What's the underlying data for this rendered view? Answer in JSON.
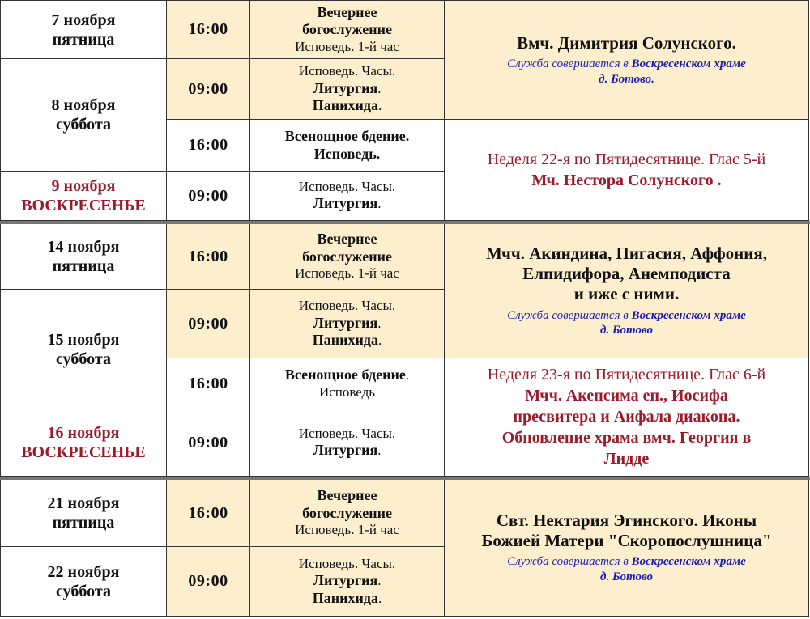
{
  "colors": {
    "highlight_bg": "#fdefce",
    "red_text": "#9b1b2b",
    "blue_note": "#2323b8",
    "border": "#333333"
  },
  "dates": [
    {
      "day": "7 ноября",
      "weekday": "пятница",
      "sunday": false
    },
    {
      "day": "8 ноября",
      "weekday": "суббота",
      "sunday": false
    },
    {
      "day": "9 ноября",
      "weekday": "ВОСКРЕСЕНЬЕ",
      "sunday": true
    },
    {
      "day": "14 ноября",
      "weekday": "пятница",
      "sunday": false
    },
    {
      "day": "15 ноября",
      "weekday": "суббота",
      "sunday": false
    },
    {
      "day": "16 ноября",
      "weekday": "ВОСКРЕСЕНЬЕ",
      "sunday": true
    },
    {
      "day": "21 ноября",
      "weekday": "пятница",
      "sunday": false
    },
    {
      "day": "22 ноября",
      "weekday": "суббота",
      "sunday": false
    }
  ],
  "services": [
    {
      "time": "16:00",
      "lines": [
        [
          {
            "t": "Вечернее",
            "b": true
          }
        ],
        [
          {
            "t": "богослужение",
            "b": true
          }
        ],
        [
          {
            "t": "Исповедь. 1-й час"
          }
        ]
      ]
    },
    {
      "time": "09:00",
      "lines": [
        [
          {
            "t": "Исповедь. Часы."
          }
        ],
        [
          {
            "t": "Литургия",
            "b": true
          },
          {
            "t": "."
          }
        ],
        [
          {
            "t": "Панихида",
            "b": true
          },
          {
            "t": "."
          }
        ]
      ]
    },
    {
      "time": "16:00",
      "lines": [
        [
          {
            "t": "Всенощное бдение.",
            "b": true
          }
        ],
        [
          {
            "t": "Исповедь.",
            "b": true
          }
        ]
      ]
    },
    {
      "time": "09:00",
      "lines": [
        [
          {
            "t": "Исповедь. Часы."
          }
        ],
        [
          {
            "t": "Литургия",
            "b": true
          },
          {
            "t": "."
          }
        ]
      ]
    },
    {
      "time": "16:00",
      "lines": [
        [
          {
            "t": "Вечернее",
            "b": true
          }
        ],
        [
          {
            "t": "богослужение",
            "b": true
          }
        ],
        [
          {
            "t": "Исповедь. 1-й час"
          }
        ]
      ]
    },
    {
      "time": "09:00",
      "lines": [
        [
          {
            "t": "Исповедь. Часы."
          }
        ],
        [
          {
            "t": "Литургия",
            "b": true
          },
          {
            "t": "."
          }
        ],
        [
          {
            "t": "Панихида",
            "b": true
          },
          {
            "t": "."
          }
        ]
      ]
    },
    {
      "time": "16:00",
      "lines": [
        [
          {
            "t": "Всенощное бдение",
            "b": true
          },
          {
            "t": "."
          }
        ],
        [
          {
            "t": "Исповедь"
          }
        ]
      ]
    },
    {
      "time": "09:00",
      "lines": [
        [
          {
            "t": "Исповедь. Часы."
          }
        ],
        [
          {
            "t": "Литургия",
            "b": true
          },
          {
            "t": "."
          }
        ]
      ]
    },
    {
      "time": "16:00",
      "lines": [
        [
          {
            "t": "Вечернее",
            "b": true
          }
        ],
        [
          {
            "t": "богослужение",
            "b": true
          }
        ],
        [
          {
            "t": "Исповедь. 1-й час"
          }
        ]
      ]
    },
    {
      "time": "09:00",
      "lines": [
        [
          {
            "t": "Исповедь. Часы."
          }
        ],
        [
          {
            "t": "Литургия",
            "b": true
          },
          {
            "t": "."
          }
        ],
        [
          {
            "t": "Панихида",
            "b": true
          },
          {
            "t": "."
          }
        ]
      ]
    }
  ],
  "feasts": [
    {
      "lines": [
        {
          "style": "title",
          "segs": [
            {
              "t": "Вмч. Димитрия Солунского."
            }
          ]
        },
        {
          "style": "note",
          "segs": [
            {
              "t": "Служба совершается  в  "
            },
            {
              "t": "Воскресенском храме",
              "b": true
            }
          ]
        },
        {
          "style": "note",
          "segs": [
            {
              "t": "д. Ботово.",
              "b": true
            }
          ]
        }
      ]
    },
    {
      "lines": [
        {
          "style": "red",
          "segs": [
            {
              "t": "Неделя 22-я по Пятидесятнице. Глас 5-й"
            }
          ]
        },
        {
          "style": "redb",
          "segs": [
            {
              "t": "Мч. Нестора Солунского ."
            }
          ]
        }
      ]
    },
    {
      "lines": [
        {
          "style": "title",
          "segs": [
            {
              "t": "Мчч. Акиндина, Пигасия, Аффония,"
            }
          ]
        },
        {
          "style": "title",
          "segs": [
            {
              "t": "Елпидифора, Анемподиста"
            }
          ]
        },
        {
          "style": "title",
          "segs": [
            {
              "t": "и иже с ними."
            }
          ]
        },
        {
          "style": "note",
          "segs": [
            {
              "t": "Служба совершается  в  "
            },
            {
              "t": "Воскресенском храме",
              "b": true
            }
          ]
        },
        {
          "style": "note",
          "segs": [
            {
              "t": "д. Ботово",
              "b": true
            }
          ]
        }
      ]
    },
    {
      "lines": [
        {
          "style": "red",
          "segs": [
            {
              "t": "Неделя 23-я по Пятидесятнице. Глас 6-й"
            }
          ]
        },
        {
          "style": "redb",
          "segs": [
            {
              "t": "Мчч. Акепсима еп., Иосифа"
            }
          ]
        },
        {
          "style": "redb",
          "segs": [
            {
              "t": "пресвитера и Аифала диакона."
            }
          ]
        },
        {
          "style": "redb",
          "segs": [
            {
              "t": "Обновление храма вмч. Георгия в"
            }
          ]
        },
        {
          "style": "redb",
          "segs": [
            {
              "t": "Лидде"
            }
          ]
        }
      ]
    },
    {
      "lines": [
        {
          "style": "title",
          "segs": [
            {
              "t": "Свт. Нектария Эгинского. Иконы"
            }
          ]
        },
        {
          "style": "title",
          "segs": [
            {
              "t": "Божией Матери \"Скоропослушница\""
            }
          ]
        },
        {
          "style": "note",
          "segs": [
            {
              "t": "Служба совершается  в  "
            },
            {
              "t": "Воскресенском храме",
              "b": true
            }
          ]
        },
        {
          "style": "note",
          "segs": [
            {
              "t": "д. Ботово",
              "b": true
            }
          ]
        }
      ]
    }
  ]
}
